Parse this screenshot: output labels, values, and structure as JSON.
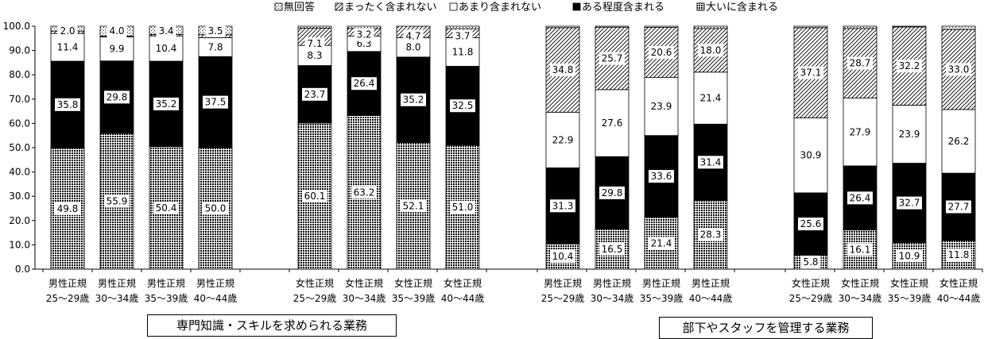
{
  "chart_data": {
    "type": "bar",
    "stacked": true,
    "ylim": [
      0,
      100
    ],
    "yticks": [
      "0.0",
      "10.0",
      "20.0",
      "30.0",
      "40.0",
      "50.0",
      "60.0",
      "70.0",
      "80.0",
      "90.0",
      "100.0"
    ],
    "legend_position": "top",
    "grid": false,
    "legend_order": [
      "無回答",
      "まったく含まれない",
      "あまり含まれない",
      "ある程度含まれる",
      "大いに含まれる"
    ],
    "series": [
      {
        "name": "大いに含まれる",
        "pattern": "dense-dots"
      },
      {
        "name": "ある程度含まれる",
        "pattern": "black"
      },
      {
        "name": "あまり含まれない",
        "pattern": "white"
      },
      {
        "name": "まったく含まれない",
        "pattern": "diagonal"
      },
      {
        "name": "無回答",
        "pattern": "dots"
      }
    ],
    "categories": [
      {
        "line1": "男性正規",
        "line2": "25～29歳"
      },
      {
        "line1": "男性正規",
        "line2": "30～34歳"
      },
      {
        "line1": "男性正規",
        "line2": "35～39歳"
      },
      {
        "line1": "男性正規",
        "line2": "40～44歳"
      },
      {
        "line1": "女性正規",
        "line2": "25～29歳"
      },
      {
        "line1": "女性正規",
        "line2": "30～34歳"
      },
      {
        "line1": "女性正規",
        "line2": "35～39歳"
      },
      {
        "line1": "女性正規",
        "line2": "40～44歳"
      },
      {
        "line1": "男性正規",
        "line2": "25～29歳"
      },
      {
        "line1": "男性正規",
        "line2": "30～34歳"
      },
      {
        "line1": "男性正規",
        "line2": "35～39歳"
      },
      {
        "line1": "男性正規",
        "line2": "40～44歳"
      },
      {
        "line1": "女性正規",
        "line2": "25～29歳"
      },
      {
        "line1": "女性正規",
        "line2": "30～34歳"
      },
      {
        "line1": "女性正規",
        "line2": "35～39歳"
      },
      {
        "line1": "女性正規",
        "line2": "40～44歳"
      }
    ],
    "values": [
      [
        49.8,
        35.8,
        11.4,
        1.0,
        2.0
      ],
      [
        55.9,
        29.8,
        9.9,
        0.4,
        4.0
      ],
      [
        50.4,
        35.2,
        10.4,
        0.6,
        3.4
      ],
      [
        50.0,
        37.5,
        7.8,
        1.2,
        3.5
      ],
      [
        60.1,
        23.7,
        8.3,
        7.1,
        0.8
      ],
      [
        63.2,
        26.4,
        6.3,
        3.2,
        0.9
      ],
      [
        52.1,
        35.2,
        8.0,
        4.7,
        0.0
      ],
      [
        51.0,
        32.5,
        11.8,
        3.7,
        1.0
      ],
      [
        10.4,
        31.3,
        22.9,
        34.8,
        0.6
      ],
      [
        16.5,
        29.8,
        27.6,
        25.7,
        0.4
      ],
      [
        21.4,
        33.6,
        23.9,
        20.6,
        0.5
      ],
      [
        28.3,
        31.4,
        21.4,
        18.0,
        0.9
      ],
      [
        5.8,
        25.6,
        30.9,
        37.1,
        0.6
      ],
      [
        16.1,
        26.4,
        27.9,
        28.7,
        0.9
      ],
      [
        10.9,
        32.7,
        23.9,
        32.2,
        0.3
      ],
      [
        11.8,
        27.7,
        26.2,
        33.0,
        1.3
      ]
    ],
    "labels": [
      [
        "49.8",
        "35.8",
        "11.4",
        "",
        "2.0"
      ],
      [
        "55.9",
        "29.8",
        "9.9",
        "",
        "4.0"
      ],
      [
        "50.4",
        "35.2",
        "10.4",
        "",
        "3.4"
      ],
      [
        "50.0",
        "37.5",
        "7.8",
        "",
        "3.5"
      ],
      [
        "60.1",
        "23.7",
        "8.3",
        "7.1",
        ""
      ],
      [
        "63.2",
        "26.4",
        "6.3",
        "3.2",
        ""
      ],
      [
        "52.1",
        "35.2",
        "8.0",
        "4.7",
        ""
      ],
      [
        "51.0",
        "32.5",
        "11.8",
        "3.7",
        ""
      ],
      [
        "10.4",
        "31.3",
        "22.9",
        "34.8",
        ""
      ],
      [
        "16.5",
        "29.8",
        "27.6",
        "25.7",
        ""
      ],
      [
        "21.4",
        "33.6",
        "23.9",
        "20.6",
        ""
      ],
      [
        "28.3",
        "31.4",
        "21.4",
        "18.0",
        ""
      ],
      [
        "5.8",
        "25.6",
        "30.9",
        "37.1",
        ""
      ],
      [
        "16.1",
        "26.4",
        "27.9",
        "28.7",
        ""
      ],
      [
        "10.9",
        "32.7",
        "23.9",
        "32.2",
        ""
      ],
      [
        "11.8",
        "27.7",
        "26.2",
        "33.0",
        ""
      ]
    ],
    "groups": [
      {
        "label": "専門知識・スキルを求められる業務"
      },
      {
        "label": "部下やスタッフを管理する業務"
      }
    ]
  }
}
